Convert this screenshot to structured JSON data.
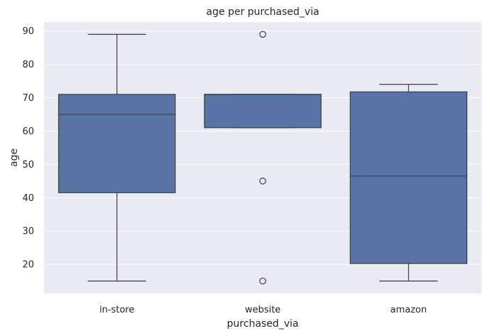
{
  "chart_data": {
    "type": "box",
    "title": "age per purchased_via",
    "xlabel": "purchased_via",
    "ylabel": "age",
    "ylim": [
      11.3,
      92.7
    ],
    "yticks": [
      "20",
      "30",
      "40",
      "50",
      "60",
      "70",
      "80",
      "90"
    ],
    "grid": true,
    "categories": [
      "in-store",
      "website",
      "amazon"
    ],
    "boxes": [
      {
        "category": "in-store",
        "whisker_low": 15,
        "q1": 41.5,
        "median": 65,
        "q3": 71,
        "whisker_high": 89,
        "outliers": []
      },
      {
        "category": "website",
        "whisker_low": 61,
        "q1": 61,
        "median": 71,
        "q3": 71,
        "whisker_high": 71,
        "outliers": [
          89,
          45,
          15
        ]
      },
      {
        "category": "amazon",
        "whisker_low": 15,
        "q1": 20.25,
        "median": 46.5,
        "q3": 71.75,
        "whisker_high": 74,
        "outliers": []
      }
    ],
    "colors": {
      "box": "#5874a5",
      "line": "#3d3d3d",
      "background": "#eaeaf2",
      "grid": "#ffffff"
    }
  }
}
